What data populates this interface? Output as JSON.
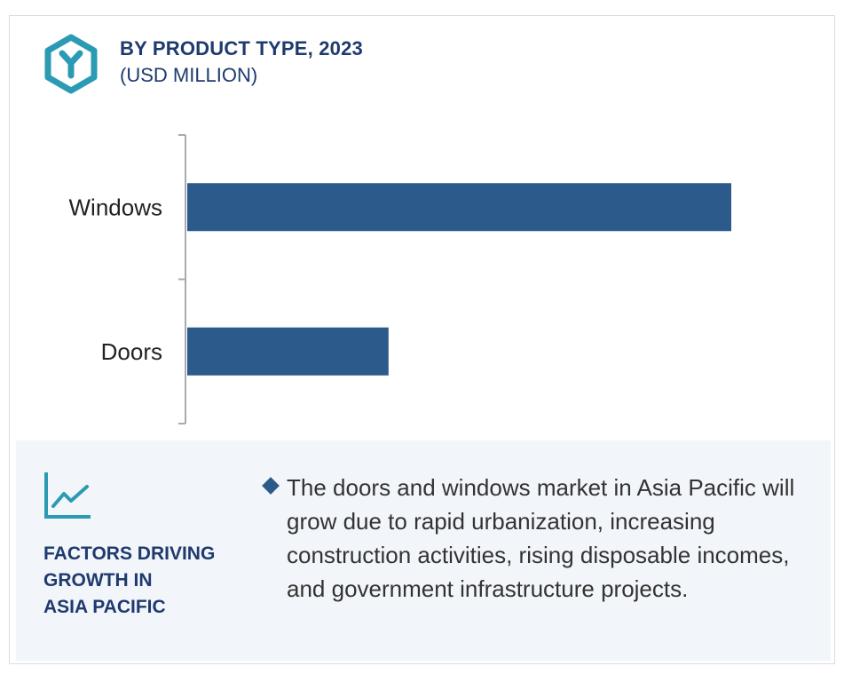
{
  "header": {
    "title": "BY PRODUCT TYPE, 2023",
    "subtitle": "(USD MILLION)",
    "logo_icon": "hexagon-y-logo-icon"
  },
  "colors": {
    "bar": "#2c5a8a",
    "accent_teal": "#2b9ab3",
    "title_navy": "#1e3a6e",
    "panel_bg": "#f2f5fa",
    "axis": "#aaaaaa"
  },
  "chart_data": {
    "type": "bar",
    "orientation": "horizontal",
    "title": "BY PRODUCT TYPE, 2023",
    "subtitle": "(USD MILLION)",
    "categories": [
      "Windows",
      "Doors"
    ],
    "values": [
      100,
      37
    ],
    "xlim": [
      0,
      100
    ],
    "grid": false,
    "value_axis_labels": false
  },
  "factors": {
    "heading": [
      "FACTORS DRIVING",
      "GROWTH IN",
      "ASIA PACIFIC"
    ],
    "icon": "trend-line-chart-icon",
    "bullet": "The doors and windows market in Asia Pacific will grow due to rapid urbanization, increasing construction activities, rising disposable incomes, and government infrastructure projects."
  }
}
